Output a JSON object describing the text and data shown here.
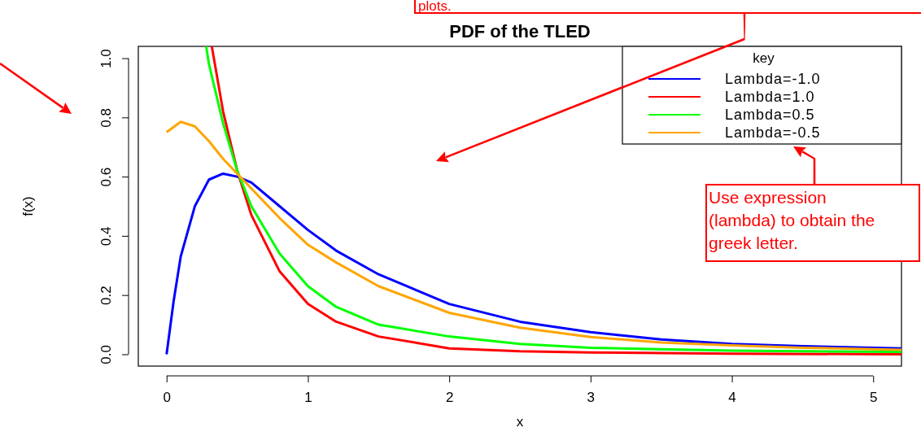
{
  "chart_data": {
    "type": "line",
    "title": "PDF of the TLED",
    "xlabel": "x",
    "ylabel": "f(x)",
    "legend_title": "key",
    "legend": "top right",
    "xlim": [
      -0.2,
      5.2
    ],
    "xticks": [
      0,
      1,
      2,
      3,
      4,
      5
    ],
    "ylim": [
      -0.04,
      1.04
    ],
    "yticks": [
      {
        "value": 0,
        "label": "0.0"
      },
      {
        "value": 0.2,
        "label": "0.2"
      },
      {
        "value": 0.4,
        "label": "0.4"
      },
      {
        "value": 0.6,
        "label": "0.6"
      },
      {
        "value": 0.8,
        "label": "0.8"
      },
      {
        "value": 1,
        "label": "1.0"
      }
    ],
    "series": [
      {
        "name": "Lambda=-1.0",
        "color": "#0000ff",
        "x": [
          0,
          0.05,
          0.1,
          0.2,
          0.3,
          0.4,
          0.5,
          0.6,
          0.8,
          1.0,
          1.2,
          1.5,
          2.0,
          2.5,
          3.0,
          3.5,
          4.0,
          4.5,
          5.2
        ],
        "values": [
          0,
          0.18,
          0.33,
          0.5,
          0.59,
          0.61,
          0.6,
          0.58,
          0.5,
          0.42,
          0.35,
          0.27,
          0.17,
          0.11,
          0.075,
          0.05,
          0.035,
          0.027,
          0.02
        ]
      },
      {
        "name": "Lambda=1.0",
        "color": "#ff0000",
        "x": [
          0.32,
          0.4,
          0.5,
          0.6,
          0.8,
          1.0,
          1.2,
          1.5,
          2.0,
          2.5,
          3.0,
          4.0,
          5.2
        ],
        "values": [
          1.04,
          0.82,
          0.62,
          0.47,
          0.28,
          0.17,
          0.11,
          0.06,
          0.02,
          0.01,
          0.006,
          0.002,
          0
        ]
      },
      {
        "name": "Lambda=0.5",
        "color": "#00ff00",
        "x": [
          0.28,
          0.3,
          0.4,
          0.5,
          0.6,
          0.8,
          1.0,
          1.2,
          1.5,
          2.0,
          2.5,
          3.0,
          4.0,
          5.2
        ],
        "values": [
          1.04,
          0.98,
          0.78,
          0.62,
          0.5,
          0.34,
          0.23,
          0.16,
          0.1,
          0.06,
          0.035,
          0.022,
          0.012,
          0.008
        ]
      },
      {
        "name": "Lambda=-0.5",
        "color": "#ffa500",
        "x": [
          0,
          0.1,
          0.2,
          0.3,
          0.4,
          0.5,
          0.6,
          0.8,
          1.0,
          1.2,
          1.5,
          2.0,
          2.5,
          3.0,
          3.5,
          4.0,
          4.5,
          5.2
        ],
        "values": [
          0.75,
          0.785,
          0.77,
          0.72,
          0.66,
          0.61,
          0.56,
          0.46,
          0.37,
          0.31,
          0.23,
          0.14,
          0.09,
          0.058,
          0.04,
          0.03,
          0.022,
          0.015
        ]
      }
    ],
    "annotations": [
      "plots.",
      "Use expression (lambda) to obtain the greek letter."
    ]
  }
}
